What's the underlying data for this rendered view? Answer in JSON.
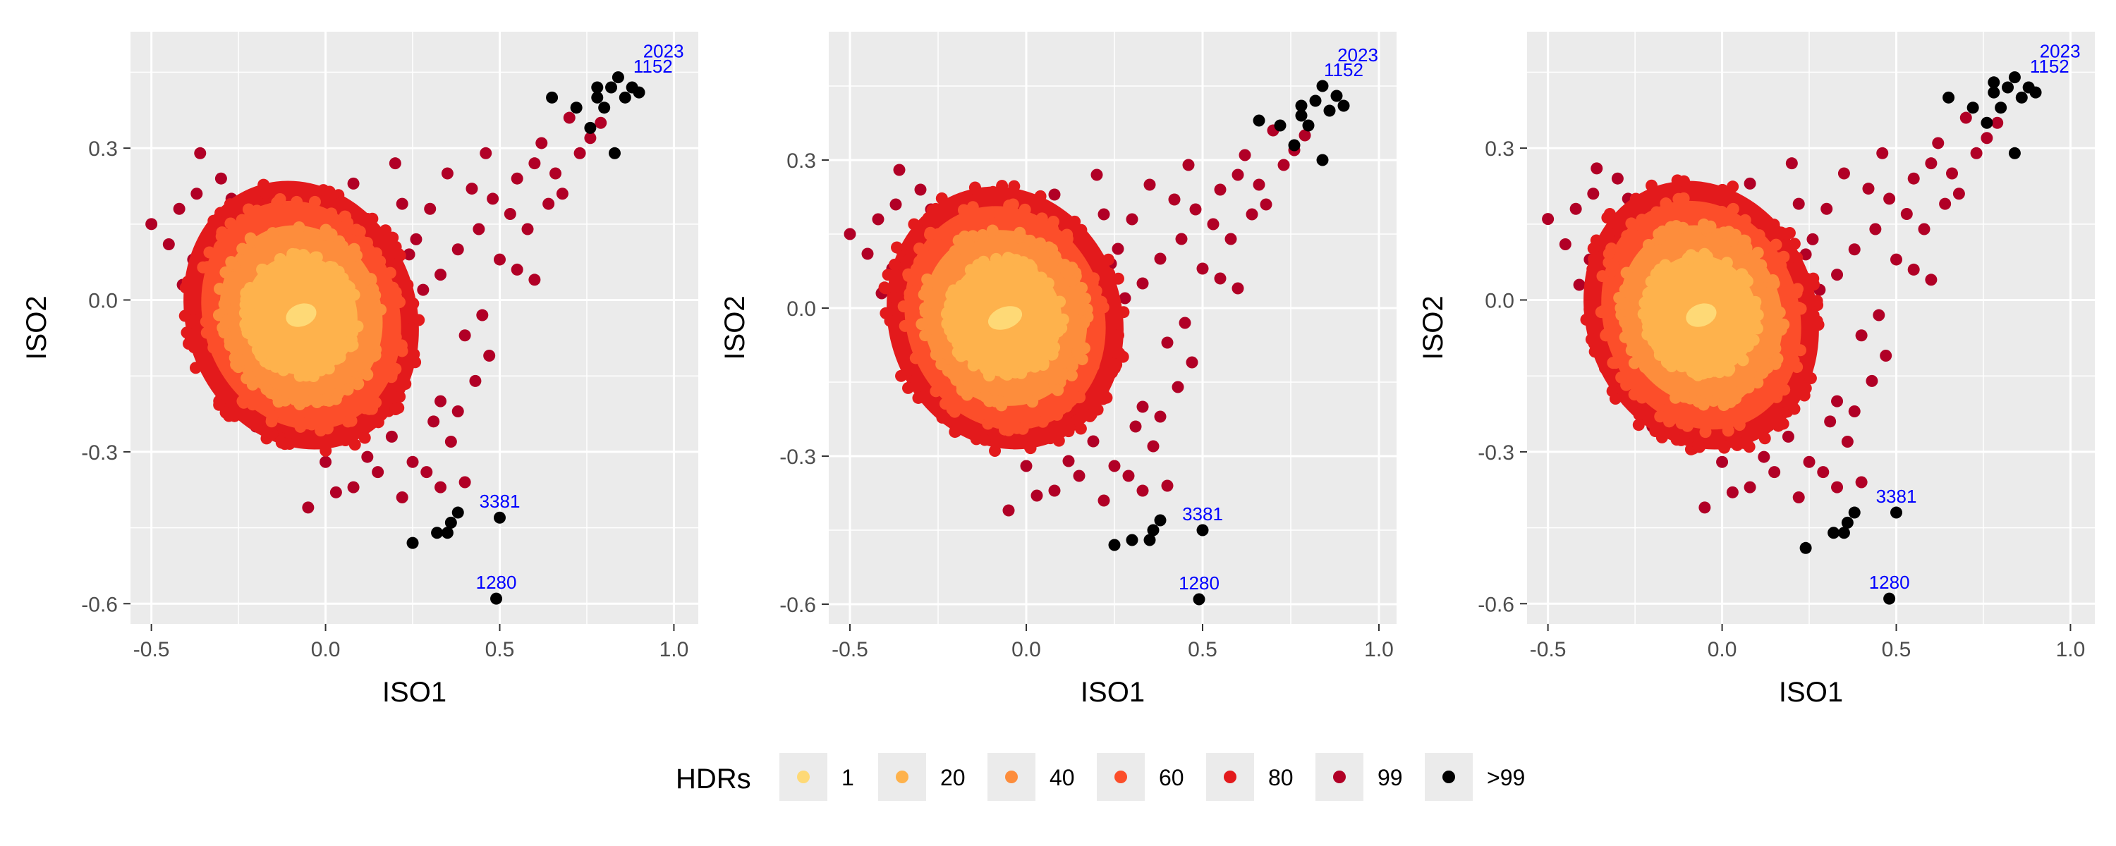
{
  "chart_data": [
    {
      "type": "scatter",
      "xlabel": "ISO1",
      "ylabel": "ISO2",
      "xlim": [
        -0.56,
        1.07
      ],
      "ylim": [
        -0.64,
        0.53
      ],
      "xticks": [
        -0.5,
        0.0,
        0.5,
        1.0
      ],
      "xtick_labels": [
        "-0.5",
        "0.0",
        "0.5",
        "1.0"
      ],
      "yticks": [
        -0.6,
        -0.3,
        0.0,
        0.3
      ],
      "ytick_labels": [
        "-0.6",
        "-0.3",
        "0.0",
        "0.3"
      ],
      "grid": true,
      "hdr_regions": {
        "center": [
          -0.07,
          -0.03
        ],
        "radii": [
          [
            0.045,
            0.022
          ],
          [
            0.16,
            0.12
          ],
          [
            0.23,
            0.18
          ],
          [
            0.28,
            0.23
          ],
          [
            0.33,
            0.27
          ]
        ],
        "tilt_deg": -20
      },
      "outer_points_99": [
        [
          -0.5,
          0.15
        ],
        [
          -0.45,
          0.11
        ],
        [
          -0.42,
          0.18
        ],
        [
          -0.36,
          0.29
        ],
        [
          -0.3,
          0.24
        ],
        [
          -0.37,
          0.21
        ],
        [
          -0.27,
          0.2
        ],
        [
          -0.38,
          0.08
        ],
        [
          -0.41,
          0.03
        ],
        [
          -0.34,
          -0.05
        ],
        [
          -0.27,
          -0.19
        ],
        [
          -0.2,
          -0.25
        ],
        [
          0.08,
          0.23
        ],
        [
          0.2,
          0.27
        ],
        [
          0.22,
          0.19
        ],
        [
          0.3,
          0.18
        ],
        [
          0.38,
          0.1
        ],
        [
          0.46,
          0.29
        ],
        [
          0.53,
          0.17
        ],
        [
          0.6,
          0.27
        ],
        [
          0.68,
          0.21
        ],
        [
          0.73,
          0.29
        ],
        [
          0.7,
          0.36
        ],
        [
          0.76,
          0.32
        ],
        [
          0.79,
          0.35
        ],
        [
          0.66,
          0.25
        ],
        [
          0.62,
          0.31
        ],
        [
          0.55,
          0.24
        ],
        [
          0.5,
          0.08
        ],
        [
          0.55,
          0.06
        ],
        [
          0.6,
          0.04
        ],
        [
          0.45,
          -0.03
        ],
        [
          0.4,
          -0.07
        ],
        [
          0.47,
          -0.11
        ],
        [
          0.43,
          -0.16
        ],
        [
          0.33,
          -0.2
        ],
        [
          0.36,
          -0.28
        ],
        [
          0.29,
          -0.34
        ],
        [
          0.22,
          -0.39
        ],
        [
          0.12,
          -0.31
        ],
        [
          0.08,
          -0.37
        ],
        [
          0.0,
          -0.32
        ],
        [
          -0.05,
          -0.41
        ],
        [
          0.03,
          -0.38
        ],
        [
          0.19,
          -0.27
        ],
        [
          0.25,
          -0.32
        ],
        [
          0.31,
          -0.24
        ],
        [
          0.38,
          -0.22
        ],
        [
          0.4,
          -0.36
        ],
        [
          0.33,
          -0.37
        ],
        [
          0.15,
          -0.34
        ],
        [
          0.06,
          -0.26
        ],
        [
          0.28,
          0.02
        ],
        [
          0.33,
          0.05
        ],
        [
          0.24,
          0.09
        ],
        [
          0.42,
          0.22
        ],
        [
          0.35,
          0.25
        ],
        [
          0.26,
          0.12
        ],
        [
          0.17,
          0.1
        ],
        [
          0.12,
          0.16
        ],
        [
          0.58,
          0.14
        ],
        [
          0.64,
          0.19
        ],
        [
          0.48,
          0.2
        ],
        [
          0.44,
          0.14
        ]
      ],
      "outer_points_gt99": [
        [
          0.65,
          0.4
        ],
        [
          0.72,
          0.38
        ],
        [
          0.76,
          0.34
        ],
        [
          0.78,
          0.4
        ],
        [
          0.8,
          0.38
        ],
        [
          0.82,
          0.42
        ],
        [
          0.84,
          0.44
        ],
        [
          0.86,
          0.4
        ],
        [
          0.88,
          0.42
        ],
        [
          0.9,
          0.41
        ],
        [
          0.78,
          0.42
        ],
        [
          0.83,
          0.29
        ],
        [
          0.25,
          -0.48
        ],
        [
          0.32,
          -0.46
        ],
        [
          0.36,
          -0.44
        ],
        [
          0.38,
          -0.42
        ],
        [
          0.35,
          -0.46
        ],
        [
          0.5,
          -0.43
        ],
        [
          0.49,
          -0.59
        ]
      ],
      "labeled_points": [
        {
          "label": "3381",
          "x": 0.5,
          "y": -0.43
        },
        {
          "label": "1280",
          "x": 0.49,
          "y": -0.59
        },
        {
          "label": "2023",
          "x": 0.97,
          "y": 0.46
        },
        {
          "label": "1152",
          "x": 0.94,
          "y": 0.43
        }
      ]
    },
    {
      "type": "scatter",
      "xlabel": "ISO1",
      "ylabel": "ISO2",
      "xlim": [
        -0.56,
        1.05
      ],
      "ylim": [
        -0.64,
        0.56
      ],
      "xticks": [
        -0.5,
        0.0,
        0.5,
        1.0
      ],
      "xtick_labels": [
        "-0.5",
        "0.0",
        "0.5",
        "1.0"
      ],
      "yticks": [
        -0.6,
        -0.3,
        0.0,
        0.3
      ],
      "ytick_labels": [
        "-0.6",
        "-0.3",
        "0.0",
        "0.3"
      ],
      "grid": true,
      "hdr_regions": {
        "center": [
          -0.06,
          -0.02
        ],
        "radii": [
          [
            0.05,
            0.022
          ],
          [
            0.16,
            0.12
          ],
          [
            0.23,
            0.18
          ],
          [
            0.28,
            0.23
          ],
          [
            0.33,
            0.27
          ]
        ],
        "tilt_deg": -20
      },
      "outer_points_99": [
        [
          -0.5,
          0.15
        ],
        [
          -0.45,
          0.11
        ],
        [
          -0.42,
          0.18
        ],
        [
          -0.36,
          0.28
        ],
        [
          -0.3,
          0.24
        ],
        [
          -0.37,
          0.21
        ],
        [
          -0.27,
          0.2
        ],
        [
          -0.38,
          0.08
        ],
        [
          -0.41,
          0.03
        ],
        [
          -0.34,
          -0.05
        ],
        [
          -0.27,
          -0.19
        ],
        [
          -0.2,
          -0.25
        ],
        [
          0.08,
          0.23
        ],
        [
          0.2,
          0.27
        ],
        [
          0.22,
          0.19
        ],
        [
          0.3,
          0.18
        ],
        [
          0.38,
          0.1
        ],
        [
          0.46,
          0.29
        ],
        [
          0.53,
          0.17
        ],
        [
          0.6,
          0.27
        ],
        [
          0.68,
          0.21
        ],
        [
          0.73,
          0.29
        ],
        [
          0.7,
          0.36
        ],
        [
          0.76,
          0.32
        ],
        [
          0.79,
          0.35
        ],
        [
          0.66,
          0.25
        ],
        [
          0.62,
          0.31
        ],
        [
          0.55,
          0.24
        ],
        [
          0.5,
          0.08
        ],
        [
          0.55,
          0.06
        ],
        [
          0.6,
          0.04
        ],
        [
          0.45,
          -0.03
        ],
        [
          0.4,
          -0.07
        ],
        [
          0.47,
          -0.11
        ],
        [
          0.43,
          -0.16
        ],
        [
          0.33,
          -0.2
        ],
        [
          0.36,
          -0.28
        ],
        [
          0.29,
          -0.34
        ],
        [
          0.22,
          -0.39
        ],
        [
          0.12,
          -0.31
        ],
        [
          0.08,
          -0.37
        ],
        [
          0.0,
          -0.32
        ],
        [
          -0.05,
          -0.41
        ],
        [
          0.03,
          -0.38
        ],
        [
          0.19,
          -0.27
        ],
        [
          0.25,
          -0.32
        ],
        [
          0.31,
          -0.24
        ],
        [
          0.38,
          -0.22
        ],
        [
          0.4,
          -0.36
        ],
        [
          0.33,
          -0.37
        ],
        [
          0.15,
          -0.34
        ],
        [
          0.06,
          -0.26
        ],
        [
          0.28,
          0.02
        ],
        [
          0.33,
          0.05
        ],
        [
          0.24,
          0.09
        ],
        [
          0.42,
          0.22
        ],
        [
          0.35,
          0.25
        ],
        [
          0.26,
          0.12
        ],
        [
          0.17,
          0.1
        ],
        [
          0.12,
          0.16
        ],
        [
          0.58,
          0.14
        ],
        [
          0.64,
          0.19
        ],
        [
          0.48,
          0.2
        ],
        [
          0.44,
          0.14
        ]
      ],
      "outer_points_gt99": [
        [
          0.66,
          0.38
        ],
        [
          0.72,
          0.37
        ],
        [
          0.76,
          0.33
        ],
        [
          0.78,
          0.39
        ],
        [
          0.8,
          0.37
        ],
        [
          0.82,
          0.42
        ],
        [
          0.84,
          0.45
        ],
        [
          0.86,
          0.4
        ],
        [
          0.88,
          0.43
        ],
        [
          0.9,
          0.41
        ],
        [
          0.78,
          0.41
        ],
        [
          0.84,
          0.3
        ],
        [
          0.25,
          -0.48
        ],
        [
          0.3,
          -0.47
        ],
        [
          0.36,
          -0.45
        ],
        [
          0.38,
          -0.43
        ],
        [
          0.35,
          -0.47
        ],
        [
          0.5,
          -0.45
        ],
        [
          0.49,
          -0.59
        ]
      ],
      "labeled_points": [
        {
          "label": "3381",
          "x": 0.5,
          "y": -0.45
        },
        {
          "label": "1280",
          "x": 0.49,
          "y": -0.59
        },
        {
          "label": "2023",
          "x": 0.94,
          "y": 0.48
        },
        {
          "label": "1152",
          "x": 0.9,
          "y": 0.45
        }
      ]
    },
    {
      "type": "scatter",
      "xlabel": "ISO1",
      "ylabel": "ISO2",
      "xlim": [
        -0.56,
        1.07
      ],
      "ylim": [
        -0.64,
        0.53
      ],
      "xticks": [
        -0.5,
        0.0,
        0.5,
        1.0
      ],
      "xtick_labels": [
        "-0.5",
        "0.0",
        "0.5",
        "1.0"
      ],
      "yticks": [
        -0.6,
        -0.3,
        0.0,
        0.3
      ],
      "ytick_labels": [
        "-0.6",
        "-0.3",
        "0.0",
        "0.3"
      ],
      "grid": true,
      "hdr_regions": {
        "center": [
          -0.06,
          -0.03
        ],
        "radii": [
          [
            0.045,
            0.022
          ],
          [
            0.16,
            0.12
          ],
          [
            0.23,
            0.18
          ],
          [
            0.28,
            0.23
          ],
          [
            0.33,
            0.27
          ]
        ],
        "tilt_deg": -20
      },
      "outer_points_99": [
        [
          -0.5,
          0.16
        ],
        [
          -0.45,
          0.11
        ],
        [
          -0.42,
          0.18
        ],
        [
          -0.36,
          0.26
        ],
        [
          -0.3,
          0.24
        ],
        [
          -0.37,
          0.21
        ],
        [
          -0.27,
          0.2
        ],
        [
          -0.38,
          0.08
        ],
        [
          -0.41,
          0.03
        ],
        [
          -0.34,
          -0.05
        ],
        [
          -0.27,
          -0.19
        ],
        [
          -0.2,
          -0.25
        ],
        [
          0.08,
          0.23
        ],
        [
          0.2,
          0.27
        ],
        [
          0.22,
          0.19
        ],
        [
          0.3,
          0.18
        ],
        [
          0.38,
          0.1
        ],
        [
          0.46,
          0.29
        ],
        [
          0.53,
          0.17
        ],
        [
          0.6,
          0.27
        ],
        [
          0.68,
          0.21
        ],
        [
          0.73,
          0.29
        ],
        [
          0.7,
          0.36
        ],
        [
          0.76,
          0.32
        ],
        [
          0.79,
          0.35
        ],
        [
          0.66,
          0.25
        ],
        [
          0.62,
          0.31
        ],
        [
          0.55,
          0.24
        ],
        [
          0.5,
          0.08
        ],
        [
          0.55,
          0.06
        ],
        [
          0.6,
          0.04
        ],
        [
          0.45,
          -0.03
        ],
        [
          0.4,
          -0.07
        ],
        [
          0.47,
          -0.11
        ],
        [
          0.43,
          -0.16
        ],
        [
          0.33,
          -0.2
        ],
        [
          0.36,
          -0.28
        ],
        [
          0.29,
          -0.34
        ],
        [
          0.22,
          -0.39
        ],
        [
          0.12,
          -0.31
        ],
        [
          0.08,
          -0.37
        ],
        [
          0.0,
          -0.32
        ],
        [
          -0.05,
          -0.41
        ],
        [
          0.03,
          -0.38
        ],
        [
          0.19,
          -0.27
        ],
        [
          0.25,
          -0.32
        ],
        [
          0.31,
          -0.24
        ],
        [
          0.38,
          -0.22
        ],
        [
          0.4,
          -0.36
        ],
        [
          0.33,
          -0.37
        ],
        [
          0.15,
          -0.34
        ],
        [
          0.06,
          -0.26
        ],
        [
          0.28,
          0.02
        ],
        [
          0.33,
          0.05
        ],
        [
          0.24,
          0.09
        ],
        [
          0.42,
          0.22
        ],
        [
          0.35,
          0.25
        ],
        [
          0.26,
          0.12
        ],
        [
          0.17,
          0.1
        ],
        [
          0.12,
          0.16
        ],
        [
          0.58,
          0.14
        ],
        [
          0.64,
          0.19
        ],
        [
          0.48,
          0.2
        ],
        [
          0.44,
          0.14
        ]
      ],
      "outer_points_gt99": [
        [
          0.65,
          0.4
        ],
        [
          0.72,
          0.38
        ],
        [
          0.76,
          0.35
        ],
        [
          0.78,
          0.41
        ],
        [
          0.8,
          0.38
        ],
        [
          0.82,
          0.42
        ],
        [
          0.84,
          0.44
        ],
        [
          0.86,
          0.4
        ],
        [
          0.88,
          0.42
        ],
        [
          0.9,
          0.41
        ],
        [
          0.78,
          0.43
        ],
        [
          0.84,
          0.29
        ],
        [
          0.24,
          -0.49
        ],
        [
          0.32,
          -0.46
        ],
        [
          0.36,
          -0.44
        ],
        [
          0.38,
          -0.42
        ],
        [
          0.35,
          -0.46
        ],
        [
          0.5,
          -0.42
        ],
        [
          0.48,
          -0.59
        ]
      ],
      "labeled_points": [
        {
          "label": "3381",
          "x": 0.5,
          "y": -0.42
        },
        {
          "label": "1280",
          "x": 0.48,
          "y": -0.59
        },
        {
          "label": "2023",
          "x": 0.97,
          "y": 0.46
        },
        {
          "label": "1152",
          "x": 0.94,
          "y": 0.43
        }
      ]
    }
  ],
  "legend": {
    "title": "HDRs",
    "position": "bottom",
    "items": [
      {
        "label": "1",
        "color": "#FED976"
      },
      {
        "label": "20",
        "color": "#FEB24C"
      },
      {
        "label": "40",
        "color": "#FD8D3C"
      },
      {
        "label": "60",
        "color": "#FC4E2A"
      },
      {
        "label": "80",
        "color": "#E31A1C"
      },
      {
        "label": "99",
        "color": "#B10026"
      },
      {
        "label": ">99",
        "color": "#000000"
      }
    ]
  },
  "colors": {
    "panel_bg": "#EBEBEB",
    "grid": "#FFFFFF",
    "outlier_label": "#0000FF"
  }
}
